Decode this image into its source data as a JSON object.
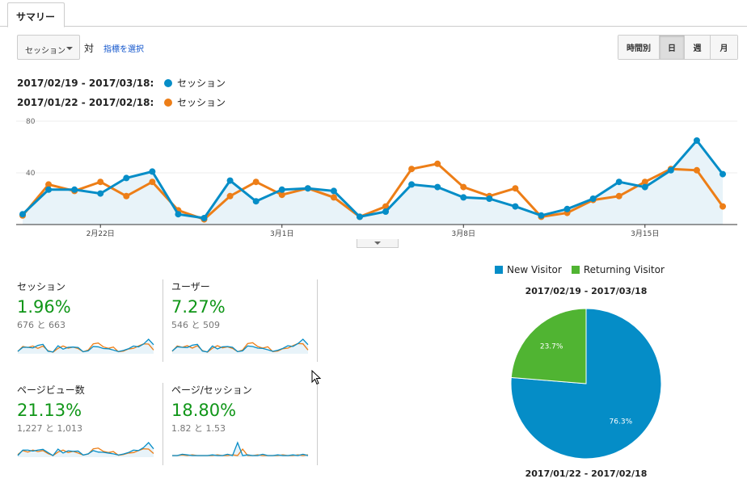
{
  "tab": {
    "label": "サマリー"
  },
  "controls": {
    "metric_select": "セッション",
    "vs": "対",
    "choose_metric": "指標を選択",
    "periods": [
      {
        "label": "時間別",
        "active": false
      },
      {
        "label": "日",
        "active": true
      },
      {
        "label": "週",
        "active": false
      },
      {
        "label": "月",
        "active": false
      }
    ]
  },
  "legend": [
    {
      "range": "2017/02/19 - 2017/03/18:",
      "metric": "セッション",
      "color": "#058dc7"
    },
    {
      "range": "2017/01/22 - 2017/02/18:",
      "metric": "セッション",
      "color": "#ed7e17"
    }
  ],
  "chart_data": {
    "type": "line",
    "x_tick_labels": [
      "2月22日",
      "3月1日",
      "3月8日",
      "3月15日"
    ],
    "y_tick_labels": [
      "80",
      "40"
    ],
    "ylim": [
      0,
      80
    ],
    "grid": true,
    "series": [
      {
        "name": "セッション",
        "color": "#058dc7",
        "values": [
          8,
          27,
          27,
          24,
          36,
          41,
          8,
          5,
          34,
          18,
          27,
          28,
          26,
          6,
          10,
          31,
          29,
          21,
          20,
          14,
          7,
          12,
          20,
          33,
          29,
          42,
          65,
          39
        ]
      },
      {
        "name": "セッション",
        "color": "#ed7e17",
        "values": [
          7,
          31,
          26,
          33,
          22,
          33,
          11,
          4,
          22,
          33,
          23,
          28,
          21,
          6,
          14,
          43,
          47,
          29,
          22,
          28,
          6,
          9,
          19,
          22,
          33,
          43,
          42,
          14
        ]
      }
    ]
  },
  "metrics": [
    {
      "title": "セッション",
      "pct": "1.96%",
      "cmp": "676 と 663",
      "a": [
        8,
        27,
        27,
        24,
        36,
        41,
        8,
        5,
        34,
        18,
        27,
        28,
        26,
        6,
        10,
        31,
        29,
        21,
        20,
        14,
        7,
        12,
        20,
        33,
        29,
        42,
        65,
        39
      ],
      "b": [
        7,
        31,
        26,
        33,
        22,
        33,
        11,
        4,
        22,
        33,
        23,
        28,
        21,
        6,
        14,
        43,
        47,
        29,
        22,
        28,
        6,
        9,
        19,
        22,
        33,
        43,
        42,
        14
      ]
    },
    {
      "title": "ユーザー",
      "pct": "7.27%",
      "cmp": "546 と 509",
      "a": [
        8,
        24,
        22,
        21,
        30,
        33,
        8,
        5,
        27,
        16,
        24,
        25,
        22,
        6,
        9,
        27,
        25,
        19,
        18,
        13,
        7,
        11,
        18,
        28,
        25,
        36,
        52,
        32
      ],
      "b": [
        7,
        27,
        22,
        28,
        19,
        28,
        10,
        4,
        19,
        28,
        20,
        24,
        18,
        6,
        12,
        36,
        39,
        25,
        19,
        24,
        6,
        8,
        17,
        19,
        28,
        36,
        35,
        12
      ]
    },
    {
      "title": "ページビュー数",
      "pct": "21.13%",
      "cmp": "1,227 と 1,013",
      "a": [
        8,
        30,
        30,
        26,
        30,
        33,
        20,
        8,
        34,
        18,
        27,
        25,
        26,
        10,
        15,
        28,
        22,
        21,
        18,
        15,
        10,
        14,
        20,
        30,
        28,
        40,
        60,
        35
      ],
      "b": [
        12,
        28,
        22,
        30,
        24,
        28,
        16,
        8,
        22,
        30,
        20,
        25,
        18,
        10,
        14,
        35,
        38,
        25,
        20,
        24,
        9,
        12,
        18,
        20,
        28,
        35,
        34,
        16
      ]
    },
    {
      "title": "ページ/セッション",
      "pct": "18.80%",
      "cmp": "1.82 と 1.53",
      "a": [
        10,
        10,
        12,
        11,
        10,
        10,
        10,
        10,
        11,
        10,
        10,
        12,
        10,
        30,
        10,
        11,
        10,
        10,
        12,
        10,
        10,
        11,
        10,
        10,
        11,
        10,
        12,
        10
      ],
      "b": [
        10,
        10,
        11,
        10,
        11,
        10,
        10,
        10,
        10,
        11,
        10,
        10,
        11,
        10,
        20,
        10,
        10,
        11,
        10,
        10,
        10,
        10,
        11,
        10,
        10,
        11,
        10,
        11
      ]
    }
  ],
  "pie": {
    "legend": [
      {
        "label": "New Visitor",
        "color": "#058dc7"
      },
      {
        "label": "Returning Visitor",
        "color": "#50b432"
      }
    ],
    "title_top": "2017/02/19 - 2017/03/18",
    "title_bottom": "2017/01/22 - 2017/02/18",
    "slices": [
      {
        "label": "76.3%",
        "value": 76.3,
        "color": "#058dc7"
      },
      {
        "label": "23.7%",
        "value": 23.7,
        "color": "#50b432"
      }
    ]
  }
}
